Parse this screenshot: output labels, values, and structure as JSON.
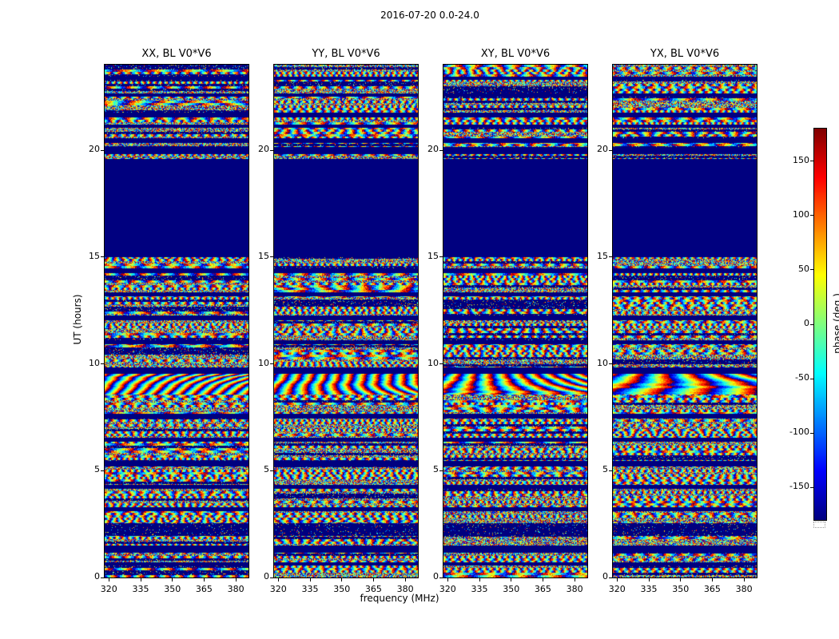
{
  "figure_title": "2016-07-20 0.0-24.0",
  "chart_data": {
    "type": "heatmap",
    "title": "2016-07-20 0.0-24.0",
    "grid": false,
    "legend": "none",
    "background": "#ffffff",
    "panels": [
      {
        "title": "XX, BL V0*V6"
      },
      {
        "title": "YY, BL V0*V6"
      },
      {
        "title": "XY, BL V0*V6"
      },
      {
        "title": "YX, BL V0*V6"
      }
    ],
    "x": {
      "label": "frequency (MHz)",
      "range": [
        318,
        386
      ],
      "ticks": [
        320,
        335,
        350,
        365,
        380
      ]
    },
    "y": {
      "label": "UT (hours)",
      "range": [
        0,
        24
      ],
      "ticks": [
        0,
        5,
        10,
        15,
        20
      ]
    },
    "value": {
      "label": "phase (deg.)",
      "range": [
        -180,
        180
      ],
      "colormap": "jet",
      "colorbar_ticks": [
        150,
        100,
        50,
        0,
        -50,
        -100,
        -150
      ],
      "flagged_color": "#00007f"
    },
    "bands": [
      {
        "y0": 0.0,
        "y1": 0.55,
        "kind": "noise"
      },
      {
        "y0": 0.55,
        "y1": 0.7,
        "kind": "solid"
      },
      {
        "y0": 0.7,
        "y1": 1.15,
        "kind": "noise"
      },
      {
        "y0": 1.15,
        "y1": 1.5,
        "kind": "solid"
      },
      {
        "y0": 1.5,
        "y1": 1.95,
        "kind": "noise"
      },
      {
        "y0": 1.95,
        "y1": 2.55,
        "kind": "sparse"
      },
      {
        "y0": 2.55,
        "y1": 3.1,
        "kind": "noise"
      },
      {
        "y0": 3.1,
        "y1": 3.3,
        "kind": "solid"
      },
      {
        "y0": 3.3,
        "y1": 4.15,
        "kind": "noise"
      },
      {
        "y0": 4.15,
        "y1": 4.35,
        "kind": "solid"
      },
      {
        "y0": 4.35,
        "y1": 5.2,
        "kind": "noise"
      },
      {
        "y0": 5.2,
        "y1": 5.45,
        "kind": "solid"
      },
      {
        "y0": 5.45,
        "y1": 6.35,
        "kind": "noise"
      },
      {
        "y0": 6.35,
        "y1": 6.55,
        "kind": "solid"
      },
      {
        "y0": 6.55,
        "y1": 7.45,
        "kind": "noise"
      },
      {
        "y0": 7.45,
        "y1": 7.65,
        "kind": "solid"
      },
      {
        "y0": 7.65,
        "y1": 8.55,
        "kind": "noise"
      },
      {
        "y0": 8.55,
        "y1": 9.55,
        "kind": "fringe"
      },
      {
        "y0": 9.55,
        "y1": 9.85,
        "kind": "solid"
      },
      {
        "y0": 9.85,
        "y1": 10.9,
        "kind": "noise"
      },
      {
        "y0": 10.9,
        "y1": 11.1,
        "kind": "solid"
      },
      {
        "y0": 11.1,
        "y1": 12.05,
        "kind": "noise"
      },
      {
        "y0": 12.05,
        "y1": 12.25,
        "kind": "solid"
      },
      {
        "y0": 12.25,
        "y1": 13.15,
        "kind": "noise"
      },
      {
        "y0": 13.15,
        "y1": 13.35,
        "kind": "solid"
      },
      {
        "y0": 13.35,
        "y1": 14.25,
        "kind": "noise"
      },
      {
        "y0": 14.25,
        "y1": 14.45,
        "kind": "solid"
      },
      {
        "y0": 14.45,
        "y1": 15.0,
        "kind": "noise"
      },
      {
        "y0": 15.0,
        "y1": 19.6,
        "kind": "solid"
      },
      {
        "y0": 19.6,
        "y1": 19.8,
        "kind": "noise"
      },
      {
        "y0": 19.8,
        "y1": 20.15,
        "kind": "solid"
      },
      {
        "y0": 20.15,
        "y1": 20.35,
        "kind": "noise"
      },
      {
        "y0": 20.35,
        "y1": 20.55,
        "kind": "solid"
      },
      {
        "y0": 20.55,
        "y1": 21.05,
        "kind": "noise"
      },
      {
        "y0": 21.05,
        "y1": 21.2,
        "kind": "solid"
      },
      {
        "y0": 21.2,
        "y1": 21.55,
        "kind": "noise"
      },
      {
        "y0": 21.55,
        "y1": 21.75,
        "kind": "solid"
      },
      {
        "y0": 21.75,
        "y1": 22.5,
        "kind": "noise"
      },
      {
        "y0": 22.5,
        "y1": 22.65,
        "kind": "solid"
      },
      {
        "y0": 22.65,
        "y1": 23.3,
        "kind": "noise"
      },
      {
        "y0": 23.3,
        "y1": 23.45,
        "kind": "solid"
      },
      {
        "y0": 23.45,
        "y1": 24.0,
        "kind": "noise"
      }
    ]
  }
}
